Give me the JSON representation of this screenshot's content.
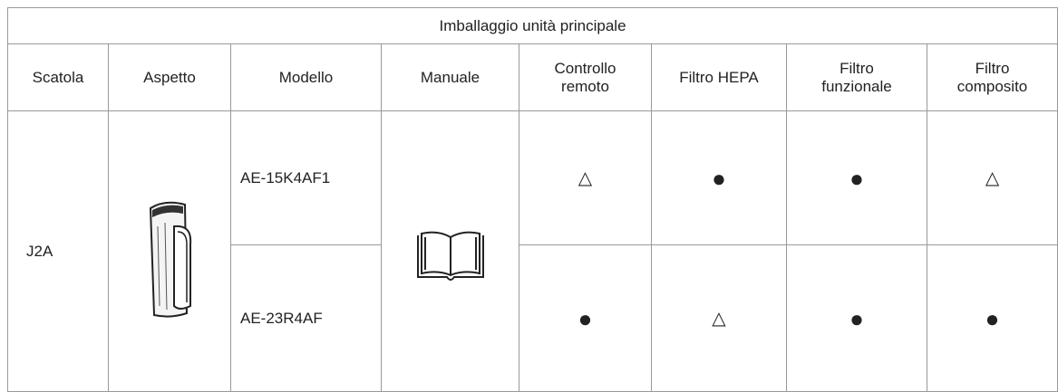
{
  "table": {
    "title": "Imballaggio unità principale",
    "header": [
      "Scatola",
      "Aspetto",
      "Modello",
      "Manuale",
      "Controllo\nremoto",
      "Filtro HEPA",
      "Filtro\nfunzionale",
      "Filtro\ncomposito"
    ],
    "box": "J2A",
    "rows": [
      {
        "model": "AE-15K4AF1",
        "marks": [
          "△",
          "●",
          "●",
          "△"
        ]
      },
      {
        "model": "AE-23R4AF",
        "marks": [
          "●",
          "△",
          "●",
          "●"
        ]
      }
    ]
  }
}
